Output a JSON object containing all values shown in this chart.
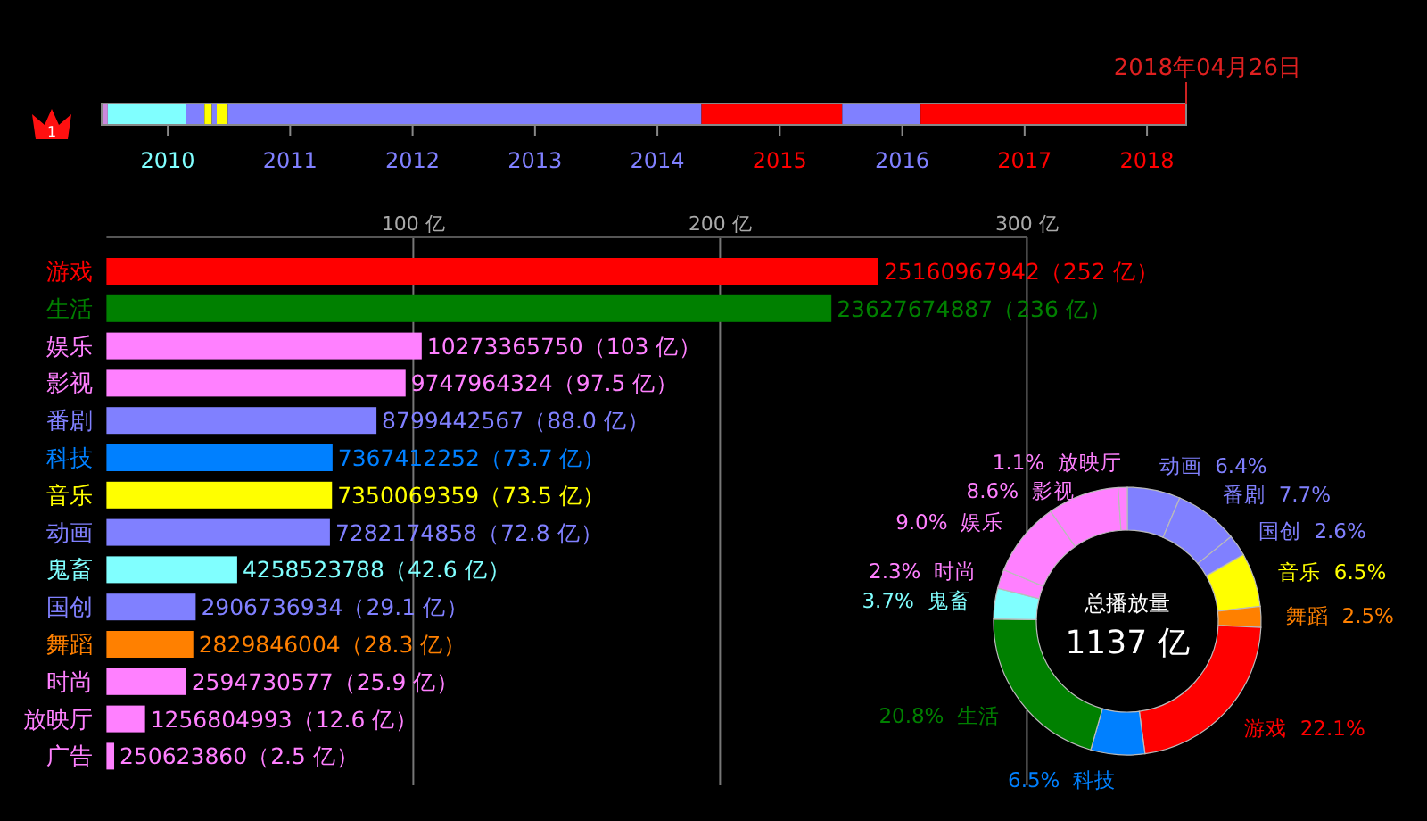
{
  "chart_data": [
    {
      "type": "bar",
      "orientation": "horizontal",
      "categories": [
        null
      ],
      "series": [
        {
          "color": "#cc88dd",
          "base": [
            2009.46
          ],
          "values": [
            0.05
          ]
        },
        {
          "color": "#80ffff",
          "base": [
            2009.51
          ],
          "values": [
            0.64
          ]
        },
        {
          "color": "#8080ff",
          "base": [
            2010.15
          ],
          "values": [
            0.15
          ]
        },
        {
          "color": "#ffff00",
          "base": [
            2010.3
          ],
          "values": [
            0.06
          ]
        },
        {
          "color": "#8080ff",
          "base": [
            2010.36
          ],
          "values": [
            0.04
          ]
        },
        {
          "color": "#ffff00",
          "base": [
            2010.4
          ],
          "values": [
            0.09
          ]
        },
        {
          "color": "#8080ff",
          "base": [
            2010.49
          ],
          "values": [
            3.87
          ]
        },
        {
          "color": "#ff0000",
          "base": [
            2014.36
          ],
          "values": [
            1.15
          ]
        },
        {
          "color": "#8080ff",
          "base": [
            2015.51
          ],
          "values": [
            0.64
          ]
        },
        {
          "color": "#ff0000",
          "base": [
            2016.15
          ],
          "values": [
            2.17
          ]
        }
      ],
      "xlim": [
        2009.46,
        2018.32
      ],
      "xticks": [
        2010,
        2011,
        2012,
        2013,
        2014,
        2015,
        2016,
        2017,
        2018
      ],
      "tick_labels": "x",
      "annotations": [
        "2018年04月26日",
        "1"
      ]
    },
    {
      "type": "bar",
      "orientation": "horizontal",
      "categories": [
        "游戏",
        "生活",
        "娱乐",
        "影视",
        "番剧",
        "科技",
        "音乐",
        "动画",
        "鬼畜",
        "国创",
        "舞蹈",
        "时尚",
        "放映厅",
        "广告"
      ],
      "values": [
        251.60967942,
        236.27674887,
        102.7336575,
        97.47964324,
        87.99442567,
        73.67412252,
        73.50069359,
        72.82174858,
        42.58523788,
        29.06736934,
        28.29846004,
        25.94730577,
        12.56804993,
        2.5062386
      ],
      "colors": [
        "#ff0000",
        "#008000",
        "#ff80ff",
        "#ff80ff",
        "#8080ff",
        "#0080ff",
        "#ffff00",
        "#8080ff",
        "#80ffff",
        "#8080ff",
        "#ff8000",
        "#ff80ff",
        "#ff80ff",
        "#ff80ff"
      ],
      "value_labels": [
        "25160967942（252 亿）",
        "23627674887（236 亿）",
        "10273365750（103 亿）",
        "9747964324（97.5 亿）",
        "8799442567（88.0 亿）",
        "7367412252（73.7 亿）",
        "7350069359（73.5 亿）",
        "7282174858（72.8 亿）",
        "4258523788（42.6 亿）",
        "2906736934（29.1 亿）",
        "2829846004（28.3 亿）",
        "2594730577（25.9 亿）",
        "1256804993（12.6 亿）",
        "250623860（2.5 亿）"
      ],
      "xlim": [
        0,
        300
      ],
      "xticks": [
        {
          "value": 100,
          "label": "100 亿"
        },
        {
          "value": 200,
          "label": "200 亿"
        },
        {
          "value": 300,
          "label": "300 亿"
        }
      ],
      "grid": "x"
    },
    {
      "type": "donut",
      "title": "总播放量",
      "subtitle": "1137 亿",
      "categories": [
        "动画",
        "番剧",
        "国创",
        "音乐",
        "舞蹈",
        "游戏",
        "科技",
        "生活",
        "鬼畜",
        "时尚",
        "娱乐",
        "影视",
        "放映厅"
      ],
      "values": [
        6.4,
        7.7,
        2.6,
        6.5,
        2.5,
        22.1,
        6.5,
        20.8,
        3.7,
        2.3,
        9.0,
        8.6,
        1.1
      ],
      "colors": [
        "#8080ff",
        "#8080ff",
        "#8080ff",
        "#ffff00",
        "#ff8000",
        "#ff0000",
        "#0080ff",
        "#008000",
        "#80ffff",
        "#ff80ff",
        "#ff80ff",
        "#ff80ff",
        "#ff80ff"
      ],
      "value_labels": [
        "6.4%",
        "7.7%",
        "2.6%",
        "6.5%",
        "2.5%",
        "22.1%",
        "6.5%",
        "20.8%",
        "3.7%",
        "2.3%",
        "9.0%",
        "8.6%",
        "1.1%"
      ]
    }
  ]
}
